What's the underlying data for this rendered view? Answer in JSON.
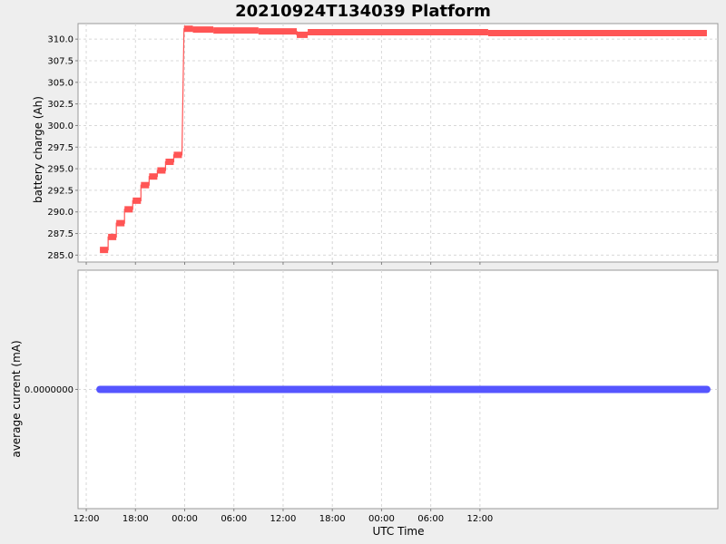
{
  "chart_data": [
    {
      "type": "line",
      "title": "20210924T134039 Platform",
      "ylabel": "battery charge (Ah)",
      "xlabel": "",
      "x_is_time": true,
      "xlim": [
        "2021-09-24T11:00",
        "2021-09-27T17:00"
      ],
      "ylim": [
        284.2,
        311.8
      ],
      "yticks": [
        "285.0",
        "287.5",
        "290.0",
        "292.5",
        "295.0",
        "297.5",
        "300.0",
        "302.5",
        "305.0",
        "307.5",
        "310.0"
      ],
      "grid": true,
      "series": [
        {
          "color": "#ff5555",
          "points": [
            [
              "2021-09-24T13:40",
              285.6
            ],
            [
              "2021-09-24T14:40",
              285.6
            ],
            [
              "2021-09-24T14:40",
              287.1
            ],
            [
              "2021-09-24T15:40",
              287.1
            ],
            [
              "2021-09-24T15:40",
              288.7
            ],
            [
              "2021-09-24T16:40",
              288.7
            ],
            [
              "2021-09-24T16:40",
              290.3
            ],
            [
              "2021-09-24T17:40",
              290.3
            ],
            [
              "2021-09-24T17:40",
              291.3
            ],
            [
              "2021-09-24T18:40",
              291.3
            ],
            [
              "2021-09-24T18:40",
              293.1
            ],
            [
              "2021-09-24T19:40",
              293.1
            ],
            [
              "2021-09-24T19:40",
              294.1
            ],
            [
              "2021-09-24T20:40",
              294.1
            ],
            [
              "2021-09-24T20:40",
              294.8
            ],
            [
              "2021-09-24T21:40",
              294.8
            ],
            [
              "2021-09-24T21:40",
              295.8
            ],
            [
              "2021-09-24T22:40",
              295.8
            ],
            [
              "2021-09-24T22:40",
              296.6
            ],
            [
              "2021-09-24T23:40",
              296.6
            ],
            [
              "2021-09-24T23:55",
              311.2
            ],
            [
              "2021-09-25T01:00",
              311.2
            ],
            [
              "2021-09-25T01:00",
              311.1
            ],
            [
              "2021-09-25T03:30",
              311.1
            ],
            [
              "2021-09-25T03:30",
              311.0
            ],
            [
              "2021-09-25T09:00",
              311.0
            ],
            [
              "2021-09-25T09:00",
              310.9
            ],
            [
              "2021-09-25T13:40",
              310.9
            ],
            [
              "2021-09-25T13:40",
              310.5
            ],
            [
              "2021-09-25T15:00",
              310.5
            ],
            [
              "2021-09-25T15:00",
              310.8
            ],
            [
              "2021-09-26T13:00",
              310.8
            ],
            [
              "2021-09-26T13:00",
              310.7
            ],
            [
              "2021-09-27T15:40",
              310.7
            ]
          ]
        }
      ]
    },
    {
      "type": "line",
      "ylabel": "average current (mA)",
      "xlabel": "UTC Time",
      "x_is_time": true,
      "xlim": [
        "2021-09-24T11:00",
        "2021-09-27T17:00"
      ],
      "ylim": [
        -1,
        1
      ],
      "yticks": [
        "0.0000000"
      ],
      "xticks": [
        "12:00",
        "18:00",
        "00:00",
        "06:00",
        "12:00",
        "18:00",
        "00:00",
        "06:00",
        "12:00"
      ],
      "grid": true,
      "series": [
        {
          "color": "#5555ff",
          "points": [
            [
              "2021-09-24T13:40",
              0
            ],
            [
              "2021-09-27T15:40",
              0
            ]
          ]
        }
      ]
    }
  ]
}
